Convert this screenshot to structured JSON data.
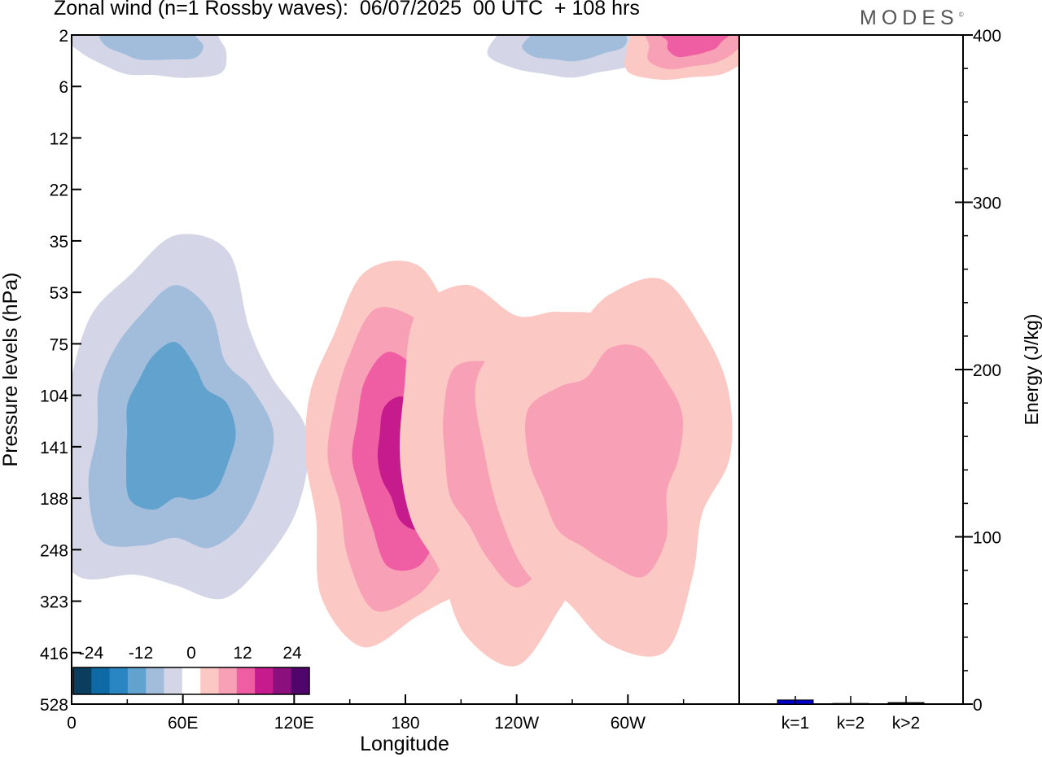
{
  "title": "Zonal wind (n=1 Rossby waves):  06/07/2025  00 UTC  + 108 hrs",
  "brand": "MODES",
  "brand_mark": "©",
  "colors": {
    "neg": [
      "#0b3d5e",
      "#0e6aa4",
      "#2a86c2",
      "#62a2ce",
      "#a2bcdb",
      "#d4d6e8"
    ],
    "pos": [
      "#fbc8c3",
      "#f8a0b6",
      "#ef5ea2",
      "#c51b8d",
      "#8c0f7e",
      "#50056b"
    ],
    "bar": "#0000cc"
  },
  "chart_data": [
    {
      "type": "heatmap",
      "plot": "contour",
      "title": "Zonal wind (n=1 Rossby waves):  06/07/2025  00 UTC  + 108 hrs",
      "xlabel": "Longitude",
      "ylabel": "Pressure levels (hPa)",
      "x_ticks": [
        "0",
        "60E",
        "120E",
        "180",
        "120W",
        "60W"
      ],
      "y_ticks": [
        "2",
        "6",
        "12",
        "22",
        "35",
        "53",
        "75",
        "104",
        "141",
        "188",
        "248",
        "323",
        "416",
        "528"
      ],
      "colorbar": {
        "tick_labels": [
          "-24",
          "-12",
          "0",
          "12",
          "24"
        ],
        "levels": [
          -30,
          -25,
          -20,
          -15,
          -10,
          -5,
          0,
          5,
          10,
          15,
          20,
          25,
          30
        ]
      },
      "features": [
        {
          "sign": "negative",
          "min": -18,
          "lon": 56,
          "pressure": 130
        },
        {
          "sign": "positive",
          "max": 22,
          "lon": 187,
          "pressure": 150
        },
        {
          "sign": "positive",
          "max": 10,
          "lon": 240,
          "pressure": 150
        },
        {
          "sign": "positive",
          "max": 10,
          "lon": 290,
          "pressure": 150
        },
        {
          "sign": "negative",
          "min": -12,
          "lon": 45,
          "pressure": 2
        },
        {
          "sign": "negative",
          "min": -10,
          "lon": 270,
          "pressure": 2
        },
        {
          "sign": "positive",
          "max": 18,
          "lon": 335,
          "pressure": 2
        }
      ]
    },
    {
      "type": "bar",
      "categories": [
        "k=1",
        "k=2",
        "k>2"
      ],
      "values": [
        2.5,
        0.4,
        0.9
      ],
      "ylabel": "Energy (J/kg)",
      "ylim": [
        0,
        400
      ],
      "y_ticks": [
        "0",
        "100",
        "200",
        "300",
        "400"
      ]
    }
  ]
}
